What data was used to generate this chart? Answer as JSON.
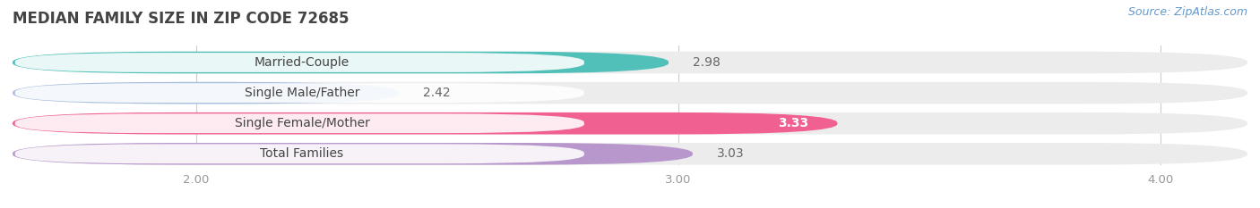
{
  "title": "MEDIAN FAMILY SIZE IN ZIP CODE 72685",
  "source": "Source: ZipAtlas.com",
  "categories": [
    "Married-Couple",
    "Single Male/Father",
    "Single Female/Mother",
    "Total Families"
  ],
  "values": [
    2.98,
    2.42,
    3.33,
    3.03
  ],
  "bar_colors": [
    "#50c0b8",
    "#aabfe0",
    "#f06090",
    "#b898cc"
  ],
  "bar_bg_color": "#ececec",
  "value_colors": [
    "#666666",
    "#666666",
    "#ffffff",
    "#666666"
  ],
  "xlim_min": 1.62,
  "xlim_max": 4.18,
  "xticks": [
    2.0,
    3.0,
    4.0
  ],
  "xtick_labels": [
    "2.00",
    "3.00",
    "4.00"
  ],
  "title_fontsize": 12,
  "label_fontsize": 10,
  "value_fontsize": 10,
  "source_fontsize": 9,
  "background_color": "#ffffff",
  "bar_height": 0.72,
  "n_bars": 4
}
